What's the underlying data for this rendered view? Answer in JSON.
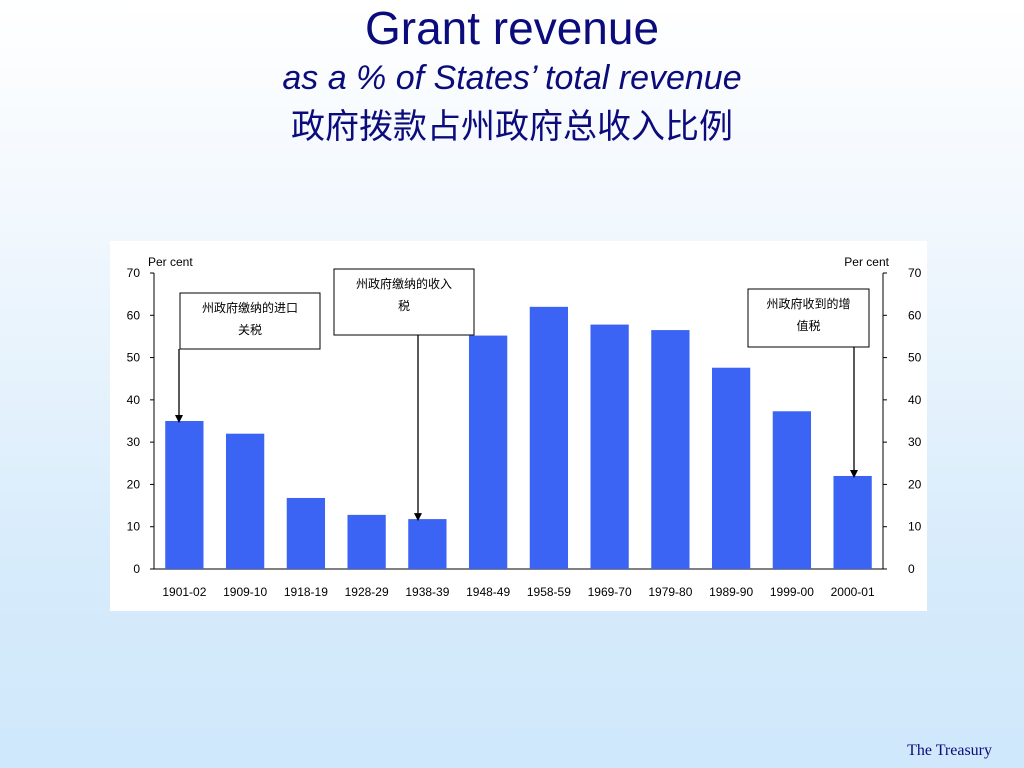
{
  "title": {
    "main": "Grant revenue",
    "sub": "as a % of States’ total revenue",
    "cn": "政府拨款占州政府总收入比例"
  },
  "footer": "The Treasury",
  "colors": {
    "bar": "#3b63f4",
    "title": "#0b0b7c"
  },
  "chart_data": {
    "type": "bar",
    "title": "",
    "ylabel_left": "Per cent",
    "ylabel_right": "Per cent",
    "ylim": [
      0,
      70
    ],
    "yticks": [
      0,
      10,
      20,
      30,
      40,
      50,
      60,
      70
    ],
    "grid": false,
    "categories": [
      "1901-02",
      "1909-10",
      "1918-19",
      "1928-29",
      "1938-39",
      "1948-49",
      "1958-59",
      "1969-70",
      "1979-80",
      "1989-90",
      "1999-00",
      "2000-01"
    ],
    "values": [
      35,
      32,
      16.8,
      12.8,
      11.8,
      55.2,
      62,
      57.8,
      56.5,
      47.6,
      37.3,
      22
    ],
    "annotations": [
      {
        "lines": [
          "州政府缴纳的进口",
          "关税"
        ],
        "target_category": "1901-02"
      },
      {
        "lines": [
          "州政府缴纳的收入",
          "税"
        ],
        "target_category": "1938-39"
      },
      {
        "lines": [
          "州政府收到的增",
          "值税"
        ],
        "target_category": "2000-01"
      }
    ]
  }
}
